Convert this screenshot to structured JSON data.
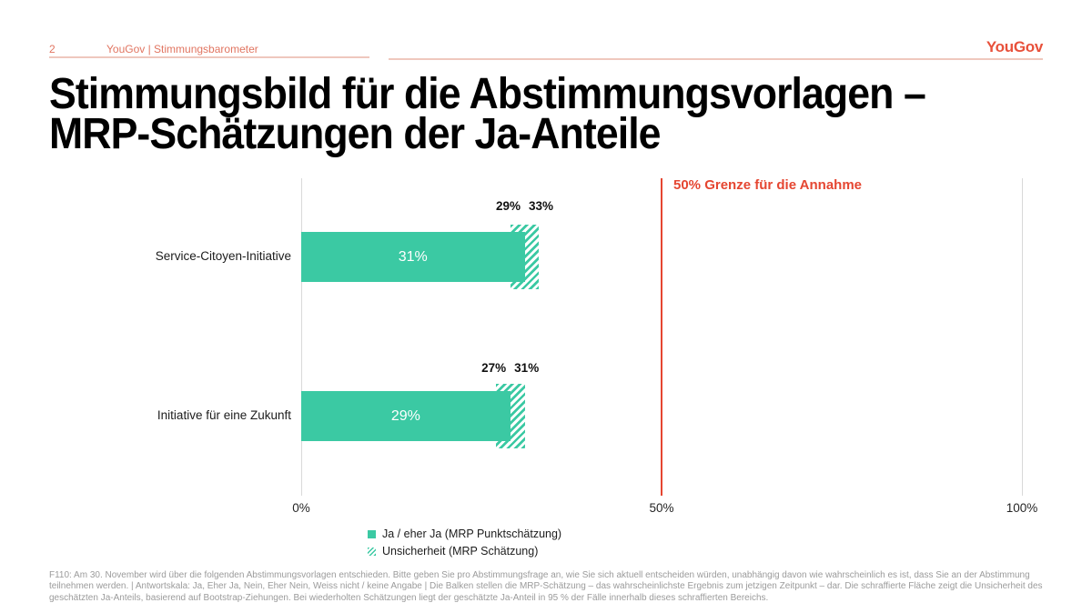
{
  "header": {
    "page_number": "2",
    "breadcrumb": "YouGov | Stimmungsbarometer",
    "logo": "YouGov"
  },
  "title": {
    "line1": "Stimmungsbild für die Abstimmungsvorlagen –",
    "line2": "MRP-Schätzungen der Ja-Anteile"
  },
  "colors": {
    "teal": "#3bc9a3",
    "red": "#e54631",
    "coral": "#e17561",
    "pink_rule": "#efc8be",
    "grid": "#d9d9d9",
    "footnote_gray": "#9b9b9b"
  },
  "chart_data": {
    "type": "bar",
    "orientation": "horizontal",
    "categories": [
      "Service-Citoyen-Initiative",
      "Initiative für eine Zukunft"
    ],
    "values": [
      31,
      29
    ],
    "bar_value_labels": [
      "31%",
      "29%"
    ],
    "uncertainty_low": [
      29,
      27
    ],
    "uncertainty_high": [
      33,
      31
    ],
    "range_labels": [
      [
        "29%",
        "33%"
      ],
      [
        "27%",
        "31%"
      ]
    ],
    "x_ticks": [
      "0%",
      "50%",
      "100%"
    ],
    "x_tick_values": [
      0,
      50,
      100
    ],
    "xlim": [
      0,
      100
    ],
    "grid": "vertical-lines-at-0-and-100",
    "threshold": {
      "value": 50,
      "label": "50% Grenze für die Annahme"
    },
    "legend_position": "bottom-left",
    "legend": [
      {
        "swatch": "solid",
        "label": "Ja / eher Ja (MRP Punktschätzung)"
      },
      {
        "swatch": "hatched",
        "label": "Unsicherheit (MRP Schätzung)"
      }
    ]
  },
  "footnote": "F110: Am 30. November wird über die folgenden Abstimmungsvorlagen entschieden. Bitte geben Sie pro Abstimmungsfrage an, wie Sie sich aktuell entscheiden würden, unabhängig davon wie wahrscheinlich es ist, dass Sie an der Abstimmung teilnehmen werden. | Antwortskala: Ja, Eher Ja, Nein, Eher Nein, Weiss nicht / keine Angabe | Die Balken stellen die MRP-Schätzung – das wahrscheinlichste Ergebnis zum jetzigen Zeitpunkt – dar. Die schraffierte Fläche zeigt die Unsicherheit des geschätzten Ja-Anteils, basierend auf Bootstrap-Ziehungen. Bei wiederholten Schätzungen liegt der geschätzte Ja-Anteil in 95 % der Fälle innerhalb dieses schraffierten Bereichs."
}
